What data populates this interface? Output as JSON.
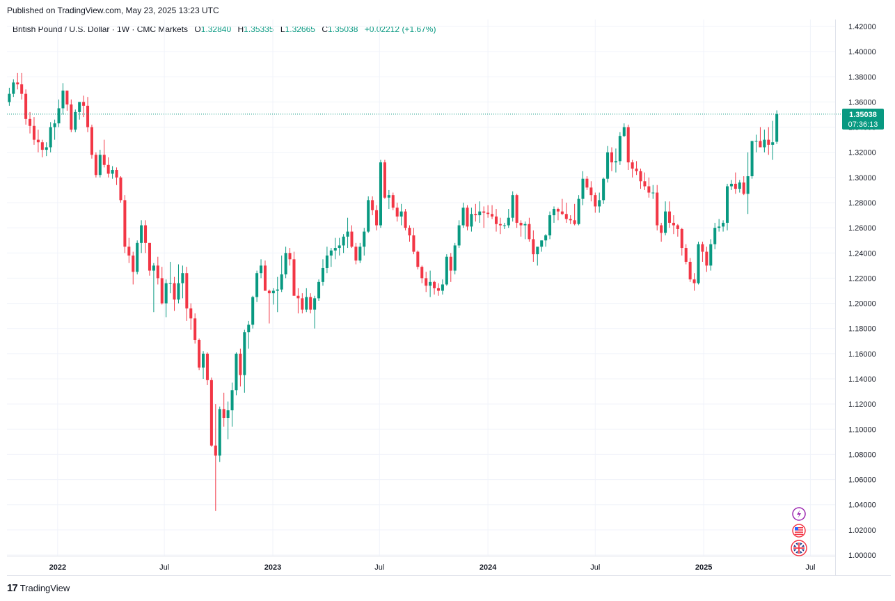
{
  "header": {
    "published": "Published on TradingView.com, May 23, 2025 13:23 UTC"
  },
  "legend": {
    "symbol": "British Pound / U.S. Dollar · 1W · CMC Markets",
    "open_label": "O",
    "open": "1.32840",
    "high_label": "H",
    "high": "1.35335",
    "low_label": "L",
    "low": "1.32665",
    "close_label": "C",
    "close": "1.35038",
    "change": "+0.02212 (+1.67%)"
  },
  "price_tag": {
    "price": "1.35038",
    "countdown": "07:36:13"
  },
  "footer": {
    "brand": "TradingView"
  },
  "icons": [
    "lightning-icon",
    "us-flag-icon",
    "uk-flag-icon"
  ],
  "colors": {
    "up": "#089981",
    "down": "#f23645",
    "grid": "#f0f3fa",
    "last_line": "#089981"
  },
  "chart_data": {
    "type": "candlestick",
    "title": "British Pound / U.S. Dollar · 1W · CMC Markets",
    "ylim": [
      1.0,
      1.42
    ],
    "y_ticks": [
      "1.42000",
      "1.40000",
      "1.38000",
      "1.36000",
      "1.34000",
      "1.32000",
      "1.30000",
      "1.28000",
      "1.26000",
      "1.24000",
      "1.22000",
      "1.20000",
      "1.18000",
      "1.16000",
      "1.14000",
      "1.12000",
      "1.10000",
      "1.08000",
      "1.06000",
      "1.04000",
      "1.02000",
      "1.00000"
    ],
    "x_ticks": [
      {
        "label": "2022",
        "date": "2022-01-01",
        "year": true
      },
      {
        "label": "Jul",
        "date": "2022-07-01",
        "year": false
      },
      {
        "label": "2023",
        "date": "2023-01-01",
        "year": true
      },
      {
        "label": "Jul",
        "date": "2023-07-01",
        "year": false
      },
      {
        "label": "2024",
        "date": "2024-01-01",
        "year": true
      },
      {
        "label": "Jul",
        "date": "2024-07-01",
        "year": false
      },
      {
        "label": "2025",
        "date": "2025-01-01",
        "year": true
      },
      {
        "label": "Jul",
        "date": "2025-07-01",
        "year": false
      }
    ],
    "x_range": [
      "2021-10-07",
      "2025-08-12"
    ],
    "first_candle_date": "2021-10-11",
    "last_price": 1.35038,
    "candles": [
      [
        1.3599,
        1.3713,
        1.357,
        1.3665
      ],
      [
        1.3665,
        1.378,
        1.364,
        1.3755
      ],
      [
        1.3755,
        1.383,
        1.37,
        1.374
      ],
      [
        1.374,
        1.383,
        1.362,
        1.3665
      ],
      [
        1.3665,
        1.37,
        1.342,
        1.3465
      ],
      [
        1.3465,
        1.352,
        1.335,
        1.341
      ],
      [
        1.341,
        1.348,
        1.326,
        1.33
      ],
      [
        1.33,
        1.338,
        1.32,
        1.328
      ],
      [
        1.328,
        1.33,
        1.316,
        1.322
      ],
      [
        1.322,
        1.328,
        1.317,
        1.324
      ],
      [
        1.324,
        1.344,
        1.32,
        1.34
      ],
      [
        1.34,
        1.346,
        1.33,
        1.343
      ],
      [
        1.343,
        1.362,
        1.34,
        1.355
      ],
      [
        1.355,
        1.375,
        1.35,
        1.369
      ],
      [
        1.369,
        1.368,
        1.353,
        1.358
      ],
      [
        1.358,
        1.362,
        1.336,
        1.338
      ],
      [
        1.338,
        1.354,
        1.336,
        1.352
      ],
      [
        1.352,
        1.36,
        1.346,
        1.36
      ],
      [
        1.36,
        1.365,
        1.348,
        1.357
      ],
      [
        1.357,
        1.364,
        1.336,
        1.34
      ],
      [
        1.34,
        1.342,
        1.315,
        1.318
      ],
      [
        1.318,
        1.32,
        1.3,
        1.302
      ],
      [
        1.302,
        1.322,
        1.3,
        1.318
      ],
      [
        1.318,
        1.33,
        1.308,
        1.31
      ],
      [
        1.31,
        1.316,
        1.3,
        1.303
      ],
      [
        1.303,
        1.309,
        1.299,
        1.306
      ],
      [
        1.306,
        1.308,
        1.294,
        1.3
      ],
      [
        1.3,
        1.301,
        1.28,
        1.282
      ],
      [
        1.282,
        1.286,
        1.24,
        1.245
      ],
      [
        1.245,
        1.252,
        1.232,
        1.238
      ],
      [
        1.238,
        1.241,
        1.215,
        1.225
      ],
      [
        1.225,
        1.25,
        1.223,
        1.248
      ],
      [
        1.248,
        1.266,
        1.24,
        1.262
      ],
      [
        1.262,
        1.266,
        1.24,
        1.248
      ],
      [
        1.248,
        1.248,
        1.222,
        1.226
      ],
      [
        1.226,
        1.232,
        1.193,
        1.23
      ],
      [
        1.23,
        1.237,
        1.215,
        1.22
      ],
      [
        1.22,
        1.229,
        1.199,
        1.2
      ],
      [
        1.2,
        1.219,
        1.189,
        1.216
      ],
      [
        1.216,
        1.233,
        1.208,
        1.216
      ],
      [
        1.216,
        1.221,
        1.194,
        1.203
      ],
      [
        1.203,
        1.231,
        1.2,
        1.216
      ],
      [
        1.216,
        1.23,
        1.204,
        1.224
      ],
      [
        1.224,
        1.229,
        1.186,
        1.196
      ],
      [
        1.196,
        1.2,
        1.179,
        1.188
      ],
      [
        1.188,
        1.192,
        1.168,
        1.171
      ],
      [
        1.171,
        1.172,
        1.147,
        1.149
      ],
      [
        1.149,
        1.162,
        1.14,
        1.16
      ],
      [
        1.16,
        1.161,
        1.135,
        1.139
      ],
      [
        1.139,
        1.141,
        1.086,
        1.087
      ],
      [
        1.087,
        1.12,
        1.035,
        1.079
      ],
      [
        1.079,
        1.118,
        1.074,
        1.116
      ],
      [
        1.116,
        1.129,
        1.102,
        1.109
      ],
      [
        1.109,
        1.122,
        1.092,
        1.115
      ],
      [
        1.115,
        1.137,
        1.102,
        1.131
      ],
      [
        1.131,
        1.161,
        1.127,
        1.16
      ],
      [
        1.16,
        1.164,
        1.134,
        1.143
      ],
      [
        1.143,
        1.179,
        1.129,
        1.177
      ],
      [
        1.177,
        1.186,
        1.164,
        1.183
      ],
      [
        1.183,
        1.206,
        1.18,
        1.205
      ],
      [
        1.205,
        1.226,
        1.201,
        1.224
      ],
      [
        1.224,
        1.235,
        1.22,
        1.23
      ],
      [
        1.23,
        1.234,
        1.212,
        1.21
      ],
      [
        1.21,
        1.211,
        1.184,
        1.208
      ],
      [
        1.208,
        1.212,
        1.199,
        1.21
      ],
      [
        1.21,
        1.221,
        1.193,
        1.211
      ],
      [
        1.211,
        1.238,
        1.209,
        1.223
      ],
      [
        1.223,
        1.245,
        1.22,
        1.24
      ],
      [
        1.24,
        1.244,
        1.23,
        1.235
      ],
      [
        1.235,
        1.241,
        1.208,
        1.206
      ],
      [
        1.206,
        1.212,
        1.192,
        1.204
      ],
      [
        1.204,
        1.208,
        1.192,
        1.195
      ],
      [
        1.195,
        1.212,
        1.193,
        1.205
      ],
      [
        1.205,
        1.208,
        1.192,
        1.195
      ],
      [
        1.195,
        1.206,
        1.18,
        1.204
      ],
      [
        1.204,
        1.219,
        1.202,
        1.217
      ],
      [
        1.217,
        1.235,
        1.214,
        1.228
      ],
      [
        1.228,
        1.245,
        1.224,
        1.238
      ],
      [
        1.238,
        1.244,
        1.229,
        1.242
      ],
      [
        1.242,
        1.252,
        1.235,
        1.244
      ],
      [
        1.244,
        1.252,
        1.238,
        1.246
      ],
      [
        1.246,
        1.255,
        1.24,
        1.253
      ],
      [
        1.253,
        1.268,
        1.244,
        1.257
      ],
      [
        1.257,
        1.262,
        1.244,
        1.245
      ],
      [
        1.245,
        1.248,
        1.231,
        1.234
      ],
      [
        1.234,
        1.248,
        1.232,
        1.245
      ],
      [
        1.245,
        1.26,
        1.238,
        1.257
      ],
      [
        1.257,
        1.285,
        1.256,
        1.282
      ],
      [
        1.282,
        1.285,
        1.27,
        1.274
      ],
      [
        1.274,
        1.278,
        1.258,
        1.262
      ],
      [
        1.262,
        1.314,
        1.26,
        1.312
      ],
      [
        1.312,
        1.314,
        1.283,
        1.284
      ],
      [
        1.284,
        1.29,
        1.275,
        1.286
      ],
      [
        1.286,
        1.288,
        1.274,
        1.276
      ],
      [
        1.276,
        1.28,
        1.265,
        1.269
      ],
      [
        1.269,
        1.279,
        1.262,
        1.273
      ],
      [
        1.273,
        1.275,
        1.258,
        1.26
      ],
      [
        1.26,
        1.262,
        1.249,
        1.254
      ],
      [
        1.254,
        1.26,
        1.239,
        1.241
      ],
      [
        1.241,
        1.242,
        1.227,
        1.229
      ],
      [
        1.229,
        1.23,
        1.216,
        1.22
      ],
      [
        1.22,
        1.225,
        1.209,
        1.214
      ],
      [
        1.214,
        1.226,
        1.205,
        1.217
      ],
      [
        1.217,
        1.218,
        1.207,
        1.212
      ],
      [
        1.212,
        1.216,
        1.206,
        1.21
      ],
      [
        1.21,
        1.219,
        1.207,
        1.215
      ],
      [
        1.215,
        1.239,
        1.214,
        1.237
      ],
      [
        1.237,
        1.24,
        1.217,
        1.226
      ],
      [
        1.226,
        1.248,
        1.223,
        1.246
      ],
      [
        1.246,
        1.266,
        1.244,
        1.262
      ],
      [
        1.262,
        1.28,
        1.26,
        1.276
      ],
      [
        1.276,
        1.278,
        1.258,
        1.261
      ],
      [
        1.261,
        1.276,
        1.257,
        1.271
      ],
      [
        1.271,
        1.279,
        1.265,
        1.27
      ],
      [
        1.27,
        1.281,
        1.264,
        1.273
      ],
      [
        1.273,
        1.277,
        1.26,
        1.272
      ],
      [
        1.272,
        1.278,
        1.268,
        1.271
      ],
      [
        1.271,
        1.278,
        1.267,
        1.269
      ],
      [
        1.269,
        1.275,
        1.257,
        1.263
      ],
      [
        1.263,
        1.268,
        1.255,
        1.262
      ],
      [
        1.262,
        1.264,
        1.259,
        1.262
      ],
      [
        1.262,
        1.275,
        1.26,
        1.268
      ],
      [
        1.268,
        1.289,
        1.265,
        1.286
      ],
      [
        1.286,
        1.287,
        1.26,
        1.264
      ],
      [
        1.264,
        1.266,
        1.253,
        1.262
      ],
      [
        1.262,
        1.265,
        1.251,
        1.263
      ],
      [
        1.263,
        1.268,
        1.249,
        1.251
      ],
      [
        1.251,
        1.258,
        1.233,
        1.239
      ],
      [
        1.239,
        1.244,
        1.23,
        1.245
      ],
      [
        1.245,
        1.25,
        1.241,
        1.25
      ],
      [
        1.25,
        1.255,
        1.245,
        1.254
      ],
      [
        1.254,
        1.273,
        1.251,
        1.27
      ],
      [
        1.27,
        1.277,
        1.264,
        1.275
      ],
      [
        1.275,
        1.276,
        1.266,
        1.273
      ],
      [
        1.273,
        1.283,
        1.27,
        1.271
      ],
      [
        1.271,
        1.28,
        1.264,
        1.267
      ],
      [
        1.267,
        1.27,
        1.263,
        1.266
      ],
      [
        1.266,
        1.279,
        1.262,
        1.263
      ],
      [
        1.263,
        1.286,
        1.262,
        1.283
      ],
      [
        1.283,
        1.305,
        1.278,
        1.299
      ],
      [
        1.299,
        1.301,
        1.29,
        1.292
      ],
      [
        1.292,
        1.297,
        1.281,
        1.286
      ],
      [
        1.286,
        1.288,
        1.272,
        1.277
      ],
      [
        1.277,
        1.288,
        1.272,
        1.282
      ],
      [
        1.282,
        1.3,
        1.279,
        1.299
      ],
      [
        1.299,
        1.325,
        1.296,
        1.32
      ],
      [
        1.32,
        1.324,
        1.305,
        1.312
      ],
      [
        1.312,
        1.323,
        1.304,
        1.313
      ],
      [
        1.313,
        1.336,
        1.31,
        1.333
      ],
      [
        1.333,
        1.343,
        1.332,
        1.34
      ],
      [
        1.34,
        1.342,
        1.306,
        1.312
      ],
      [
        1.312,
        1.314,
        1.3,
        1.307
      ],
      [
        1.307,
        1.313,
        1.302,
        1.305
      ],
      [
        1.305,
        1.307,
        1.291,
        1.297
      ],
      [
        1.297,
        1.304,
        1.29,
        1.293
      ],
      [
        1.293,
        1.3,
        1.284,
        1.288
      ],
      [
        1.288,
        1.294,
        1.283,
        1.288
      ],
      [
        1.288,
        1.294,
        1.258,
        1.262
      ],
      [
        1.262,
        1.264,
        1.249,
        1.256
      ],
      [
        1.256,
        1.281,
        1.254,
        1.273
      ],
      [
        1.273,
        1.281,
        1.26,
        1.264
      ],
      [
        1.264,
        1.27,
        1.255,
        1.262
      ],
      [
        1.262,
        1.263,
        1.253,
        1.259
      ],
      [
        1.259,
        1.26,
        1.238,
        1.244
      ],
      [
        1.244,
        1.247,
        1.231,
        1.233
      ],
      [
        1.233,
        1.236,
        1.217,
        1.219
      ],
      [
        1.219,
        1.224,
        1.21,
        1.216
      ],
      [
        1.216,
        1.249,
        1.215,
        1.247
      ],
      [
        1.247,
        1.249,
        1.233,
        1.241
      ],
      [
        1.241,
        1.245,
        1.225,
        1.23
      ],
      [
        1.23,
        1.251,
        1.226,
        1.247
      ],
      [
        1.247,
        1.264,
        1.243,
        1.26
      ],
      [
        1.26,
        1.267,
        1.257,
        1.261
      ],
      [
        1.261,
        1.266,
        1.257,
        1.264
      ],
      [
        1.264,
        1.295,
        1.258,
        1.293
      ],
      [
        1.293,
        1.298,
        1.29,
        1.295
      ],
      [
        1.295,
        1.304,
        1.287,
        1.291
      ],
      [
        1.291,
        1.298,
        1.288,
        1.296
      ],
      [
        1.296,
        1.301,
        1.286,
        1.287
      ],
      [
        1.287,
        1.32,
        1.271,
        1.301
      ],
      [
        1.301,
        1.329,
        1.299,
        1.329
      ],
      [
        1.329,
        1.334,
        1.32,
        1.329
      ],
      [
        1.329,
        1.34,
        1.324,
        1.324
      ],
      [
        1.324,
        1.338,
        1.32,
        1.33
      ],
      [
        1.33,
        1.34,
        1.318,
        1.326
      ],
      [
        1.326,
        1.345,
        1.314,
        1.328
      ],
      [
        1.3284,
        1.35335,
        1.32665,
        1.35038
      ]
    ]
  }
}
